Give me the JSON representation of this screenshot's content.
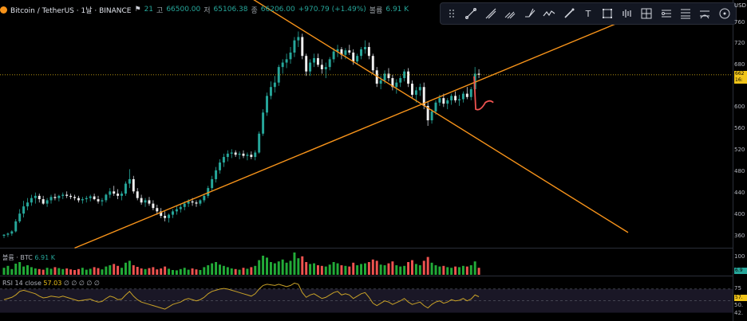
{
  "header": {
    "symbol": "Bitcoin / TetherUS · 1날 · BINANCE",
    "open_label": "21",
    "high_label": "고",
    "high_value": "66500.00",
    "low_label": "저",
    "low_value": "65106.38",
    "close_label": "종",
    "close_value": "66206.00",
    "change": "+970.79 (+1.49%)",
    "volume_label": "볼륨",
    "volume_value": "6.91 K"
  },
  "toolbar": {
    "tools": [
      "drag-handle-icon",
      "trend-line-icon",
      "ray-icon",
      "parallel-channel-icon",
      "pitchfork-icon",
      "path-icon",
      "brush-icon",
      "text-icon",
      "rectangle-icon",
      "waveform-icon",
      "grid-icon",
      "fib-retracement-icon",
      "fib-extension-icon",
      "gann-box-icon",
      "circle-icon"
    ],
    "text_tool_glyph": "T"
  },
  "volume_pane": {
    "label": "볼륨 · BTC",
    "value": "6.91 K"
  },
  "rsi_pane": {
    "label": "RSI 14 close",
    "value": "57.03",
    "extras": "∅ ∅ ∅ ∅ ∅"
  },
  "axis": {
    "currency": "USD",
    "price_ticks": [
      "760",
      "720",
      "680",
      "640",
      "600",
      "560",
      "520",
      "480",
      "440",
      "400",
      "360"
    ],
    "current_price_tag": "662",
    "current_price_tag2": "16:",
    "volume_ticks": [
      "100"
    ],
    "volume_tag": "6.9",
    "rsi_ticks": [
      "75",
      "57.",
      "50.",
      "42."
    ]
  },
  "colors": {
    "up": "#26a69a",
    "down": "#ef5350",
    "trendline": "#f7931a",
    "rsi": "#c9a227",
    "current_price": "#f0c419"
  },
  "chart_data": {
    "type": "candlestick",
    "price_unit": "USDT (hundreds axis as shown)",
    "ylim": [
      350,
      770
    ],
    "candles": [
      [
        372,
        375,
        368,
        374
      ],
      [
        374,
        378,
        370,
        376
      ],
      [
        376,
        382,
        372,
        380
      ],
      [
        380,
        402,
        378,
        398
      ],
      [
        398,
        420,
        395,
        412
      ],
      [
        412,
        435,
        405,
        425
      ],
      [
        425,
        440,
        418,
        432
      ],
      [
        432,
        446,
        426,
        440
      ],
      [
        440,
        450,
        430,
        444
      ],
      [
        444,
        448,
        432,
        438
      ],
      [
        438,
        444,
        428,
        430
      ],
      [
        430,
        440,
        424,
        436
      ],
      [
        436,
        446,
        430,
        442
      ],
      [
        442,
        448,
        436,
        440
      ],
      [
        440,
        446,
        434,
        444
      ],
      [
        444,
        450,
        438,
        446
      ],
      [
        446,
        452,
        440,
        444
      ],
      [
        444,
        448,
        438,
        442
      ],
      [
        442,
        446,
        436,
        440
      ],
      [
        440,
        444,
        432,
        436
      ],
      [
        436,
        442,
        430,
        438
      ],
      [
        438,
        444,
        432,
        440
      ],
      [
        440,
        446,
        434,
        443
      ],
      [
        443,
        448,
        436,
        438
      ],
      [
        438,
        444,
        430,
        434
      ],
      [
        434,
        440,
        426,
        436
      ],
      [
        436,
        448,
        432,
        446
      ],
      [
        446,
        458,
        440,
        452
      ],
      [
        452,
        462,
        444,
        448
      ],
      [
        448,
        456,
        438,
        444
      ],
      [
        444,
        452,
        436,
        448
      ],
      [
        448,
        470,
        444,
        466
      ],
      [
        466,
        492,
        458,
        474
      ],
      [
        474,
        480,
        448,
        452
      ],
      [
        452,
        458,
        436,
        440
      ],
      [
        440,
        446,
        428,
        432
      ],
      [
        432,
        440,
        424,
        436
      ],
      [
        436,
        442,
        426,
        430
      ],
      [
        430,
        436,
        418,
        422
      ],
      [
        422,
        428,
        410,
        416
      ],
      [
        416,
        422,
        404,
        408
      ],
      [
        408,
        416,
        398,
        404
      ],
      [
        404,
        412,
        396,
        410
      ],
      [
        410,
        420,
        404,
        416
      ],
      [
        416,
        426,
        410,
        420
      ],
      [
        420,
        430,
        414,
        424
      ],
      [
        424,
        434,
        418,
        430
      ],
      [
        430,
        438,
        424,
        434
      ],
      [
        434,
        440,
        426,
        432
      ],
      [
        432,
        436,
        424,
        430
      ],
      [
        430,
        438,
        426,
        436
      ],
      [
        436,
        448,
        432,
        444
      ],
      [
        444,
        462,
        440,
        458
      ],
      [
        458,
        480,
        452,
        474
      ],
      [
        474,
        496,
        468,
        490
      ],
      [
        490,
        510,
        484,
        504
      ],
      [
        504,
        520,
        496,
        514
      ],
      [
        514,
        526,
        506,
        520
      ],
      [
        520,
        528,
        512,
        522
      ],
      [
        522,
        526,
        514,
        518
      ],
      [
        518,
        524,
        510,
        520
      ],
      [
        520,
        526,
        512,
        516
      ],
      [
        516,
        522,
        508,
        518
      ],
      [
        518,
        524,
        510,
        514
      ],
      [
        514,
        526,
        508,
        522
      ],
      [
        522,
        560,
        520,
        556
      ],
      [
        556,
        600,
        552,
        594
      ],
      [
        594,
        630,
        588,
        624
      ],
      [
        624,
        650,
        618,
        640
      ],
      [
        640,
        660,
        630,
        648
      ],
      [
        648,
        680,
        642,
        676
      ],
      [
        676,
        690,
        664,
        684
      ],
      [
        684,
        700,
        674,
        690
      ],
      [
        690,
        712,
        682,
        702
      ],
      [
        702,
        730,
        694,
        724
      ],
      [
        724,
        740,
        712,
        730
      ],
      [
        730,
        736,
        690,
        696
      ],
      [
        696,
        700,
        660,
        668
      ],
      [
        668,
        690,
        660,
        684
      ],
      [
        684,
        700,
        676,
        692
      ],
      [
        692,
        700,
        676,
        680
      ],
      [
        680,
        690,
        664,
        672
      ],
      [
        672,
        684,
        656,
        676
      ],
      [
        676,
        694,
        670,
        690
      ],
      [
        690,
        710,
        684,
        704
      ],
      [
        704,
        716,
        694,
        708
      ],
      [
        708,
        712,
        690,
        698
      ],
      [
        698,
        710,
        690,
        706
      ],
      [
        706,
        716,
        698,
        702
      ],
      [
        702,
        708,
        680,
        686
      ],
      [
        686,
        700,
        680,
        696
      ],
      [
        696,
        712,
        690,
        708
      ],
      [
        708,
        724,
        700,
        712
      ],
      [
        712,
        720,
        690,
        696
      ],
      [
        696,
        700,
        664,
        670
      ],
      [
        670,
        676,
        640,
        646
      ],
      [
        646,
        660,
        636,
        652
      ],
      [
        652,
        670,
        646,
        664
      ],
      [
        664,
        674,
        650,
        656
      ],
      [
        656,
        662,
        634,
        640
      ],
      [
        640,
        654,
        628,
        648
      ],
      [
        648,
        660,
        640,
        656
      ],
      [
        656,
        672,
        650,
        668
      ],
      [
        668,
        674,
        640,
        646
      ],
      [
        646,
        652,
        620,
        626
      ],
      [
        626,
        640,
        612,
        634
      ],
      [
        634,
        646,
        624,
        640
      ],
      [
        640,
        648,
        600,
        606
      ],
      [
        606,
        614,
        570,
        580
      ],
      [
        580,
        600,
        574,
        596
      ],
      [
        596,
        616,
        590,
        612
      ],
      [
        612,
        626,
        606,
        620
      ],
      [
        620,
        628,
        604,
        610
      ],
      [
        610,
        620,
        600,
        616
      ],
      [
        616,
        628,
        608,
        624
      ],
      [
        624,
        632,
        612,
        616
      ],
      [
        616,
        626,
        606,
        618
      ],
      [
        618,
        632,
        612,
        628
      ],
      [
        628,
        640,
        618,
        622
      ],
      [
        622,
        640,
        616,
        636
      ],
      [
        636,
        676,
        620,
        664
      ],
      [
        664,
        672,
        656,
        662
      ]
    ],
    "trendlines": [
      {
        "name": "resistance",
        "from": {
          "i": 63,
          "p": 800
        },
        "to": {
          "i": 159,
          "p": 378
        }
      },
      {
        "name": "support",
        "from": {
          "i": 18,
          "p": 350
        },
        "to": {
          "i": 158,
          "p": 760
        }
      }
    ],
    "current_price": 662,
    "volume": [
      22,
      28,
      18,
      35,
      40,
      26,
      30,
      24,
      20,
      18,
      16,
      22,
      19,
      24,
      21,
      18,
      20,
      17,
      15,
      18,
      22,
      16,
      19,
      24,
      21,
      17,
      26,
      30,
      34,
      28,
      22,
      38,
      44,
      30,
      25,
      20,
      18,
      21,
      24,
      17,
      20,
      26,
      19,
      15,
      14,
      18,
      22,
      16,
      20,
      17,
      15,
      24,
      30,
      36,
      40,
      32,
      28,
      24,
      20,
      18,
      16,
      22,
      19,
      24,
      28,
      46,
      60,
      54,
      40,
      36,
      42,
      48,
      38,
      44,
      70,
      52,
      58,
      40,
      34,
      36,
      30,
      28,
      26,
      32,
      40,
      36,
      30,
      28,
      26,
      38,
      30,
      34,
      36,
      40,
      48,
      44,
      32,
      30,
      36,
      42,
      30,
      26,
      28,
      40,
      46,
      34,
      30,
      44,
      56,
      38,
      30,
      26,
      28,
      24,
      22,
      26,
      24,
      28,
      26,
      30,
      42,
      22
    ],
    "volume_up_flags": "derived from candle close >= open",
    "rsi": [
      52,
      54,
      56,
      60,
      66,
      68,
      66,
      64,
      62,
      58,
      55,
      56,
      58,
      57,
      56,
      58,
      56,
      54,
      52,
      50,
      51,
      52,
      53,
      50,
      48,
      49,
      54,
      58,
      56,
      52,
      53,
      60,
      66,
      58,
      52,
      48,
      46,
      44,
      42,
      40,
      38,
      36,
      40,
      44,
      46,
      48,
      52,
      54,
      52,
      50,
      52,
      56,
      62,
      66,
      68,
      70,
      71,
      70,
      68,
      66,
      64,
      62,
      60,
      58,
      62,
      70,
      76,
      78,
      77,
      76,
      78,
      76,
      74,
      76,
      80,
      78,
      64,
      56,
      60,
      62,
      58,
      54,
      56,
      60,
      64,
      66,
      60,
      62,
      60,
      54,
      58,
      62,
      64,
      56,
      46,
      42,
      46,
      50,
      48,
      44,
      47,
      50,
      54,
      48,
      44,
      46,
      48,
      42,
      38,
      44,
      48,
      50,
      46,
      48,
      52,
      50,
      51,
      54,
      50,
      53,
      60,
      57
    ],
    "rsi_levels": [
      70,
      50,
      30
    ]
  }
}
